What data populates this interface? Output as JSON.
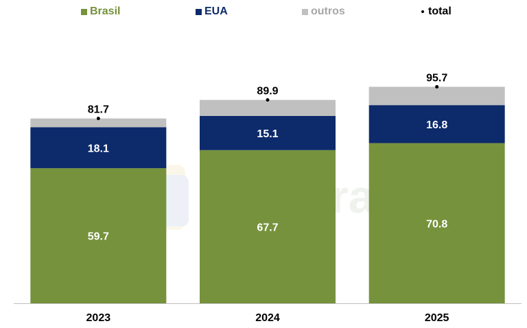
{
  "chart_data": {
    "type": "bar",
    "stacked": true,
    "categories": [
      "2023",
      "2024",
      "2025"
    ],
    "series": [
      {
        "name": "Brasil",
        "color": "#76923c",
        "values": [
          59.7,
          67.7,
          70.8
        ]
      },
      {
        "name": "EUA",
        "color": "#0d2a6b",
        "values": [
          18.1,
          15.1,
          16.8
        ]
      },
      {
        "name": "outros",
        "color": "#c0c0c0",
        "values": [
          3.9,
          7.1,
          8.1
        ]
      }
    ],
    "totals": {
      "name": "total",
      "values": [
        81.7,
        89.9,
        95.7
      ]
    },
    "value_labels": {
      "Brasil": [
        "59.7",
        "67.7",
        "70.8"
      ],
      "EUA": [
        "18.1",
        "15.1",
        "16.8"
      ],
      "total": [
        "81.7",
        "89.9",
        "95.7"
      ]
    },
    "ylim": [
      0,
      100
    ],
    "legend_position": "top",
    "grid": false,
    "watermark": "AgRural"
  },
  "legend": {
    "brasil": "Brasil",
    "eua": "EUA",
    "outros": "outros",
    "total": "total"
  },
  "colors": {
    "brasil_text": "#76923c",
    "eua_text": "#0d2a6b",
    "outros_text": "#a6a6a6",
    "total_text": "#000000"
  }
}
